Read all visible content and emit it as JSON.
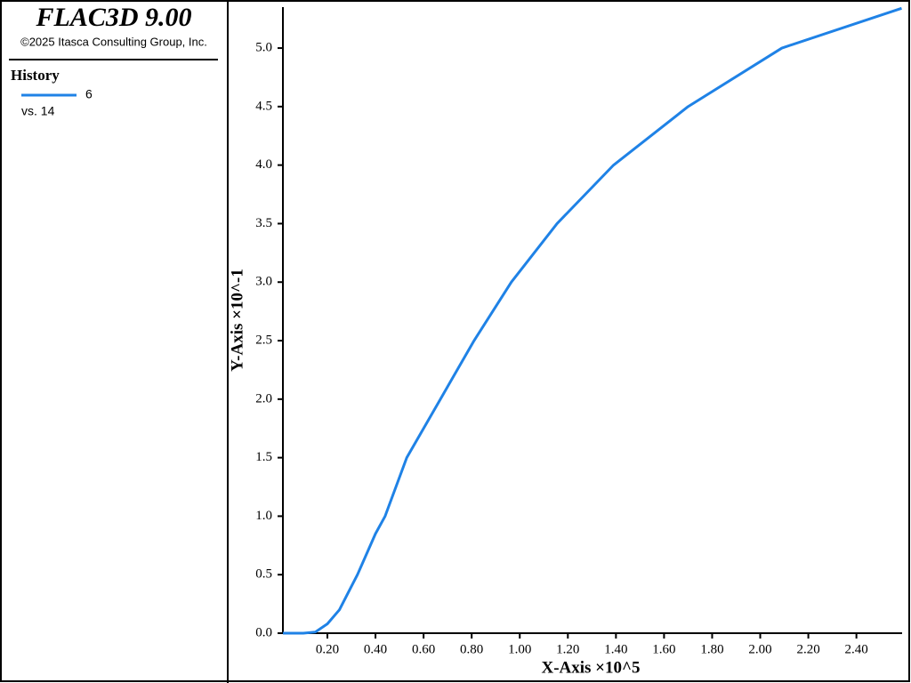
{
  "header": {
    "title": "FLAC3D 9.00",
    "copyright": "©2025 Itasca Consulting Group, Inc.",
    "section": "History",
    "vs_label": "vs. 14"
  },
  "chart_data": {
    "type": "line",
    "x_label": "X-Axis ×10^5",
    "y_label": "Y-Axis ×10^-1",
    "x": [
      0.015,
      0.1,
      0.15,
      0.2,
      0.25,
      0.3,
      0.325,
      0.4,
      0.44,
      0.53,
      0.67,
      0.81,
      0.965,
      1.155,
      1.39,
      1.7,
      2.09,
      2.588
    ],
    "series": [
      {
        "name": "6",
        "color": "#1f82e6",
        "values": [
          0,
          0,
          0.01,
          0.08,
          0.2,
          0.4,
          0.5,
          0.85,
          1.0,
          1.5,
          2.0,
          2.5,
          3.0,
          3.5,
          4.0,
          4.5,
          5.0,
          5.34
        ]
      }
    ],
    "xlim": [
      0.015,
      2.59
    ],
    "ylim": [
      0,
      5.35
    ],
    "xticks": [
      {
        "value": 0.2,
        "label": "0.20"
      },
      {
        "value": 0.4,
        "label": "0.40"
      },
      {
        "value": 0.6,
        "label": "0.60"
      },
      {
        "value": 0.8,
        "label": "0.80"
      },
      {
        "value": 1.0,
        "label": "1.00"
      },
      {
        "value": 1.2,
        "label": "1.20"
      },
      {
        "value": 1.4,
        "label": "1.40"
      },
      {
        "value": 1.6,
        "label": "1.60"
      },
      {
        "value": 1.8,
        "label": "1.80"
      },
      {
        "value": 2.0,
        "label": "2.00"
      },
      {
        "value": 2.2,
        "label": "2.20"
      },
      {
        "value": 2.4,
        "label": "2.40"
      }
    ],
    "yticks": [
      {
        "value": 0,
        "label": "0.0"
      },
      {
        "value": 0.5,
        "label": "0.5"
      },
      {
        "value": 1.0,
        "label": "1.0"
      },
      {
        "value": 1.5,
        "label": "1.5"
      },
      {
        "value": 2.0,
        "label": "2.0"
      },
      {
        "value": 2.5,
        "label": "2.5"
      },
      {
        "value": 3.0,
        "label": "3.0"
      },
      {
        "value": 3.5,
        "label": "3.5"
      },
      {
        "value": 4.0,
        "label": "4.0"
      },
      {
        "value": 4.5,
        "label": "4.5"
      },
      {
        "value": 5.0,
        "label": "5.0"
      }
    ]
  }
}
